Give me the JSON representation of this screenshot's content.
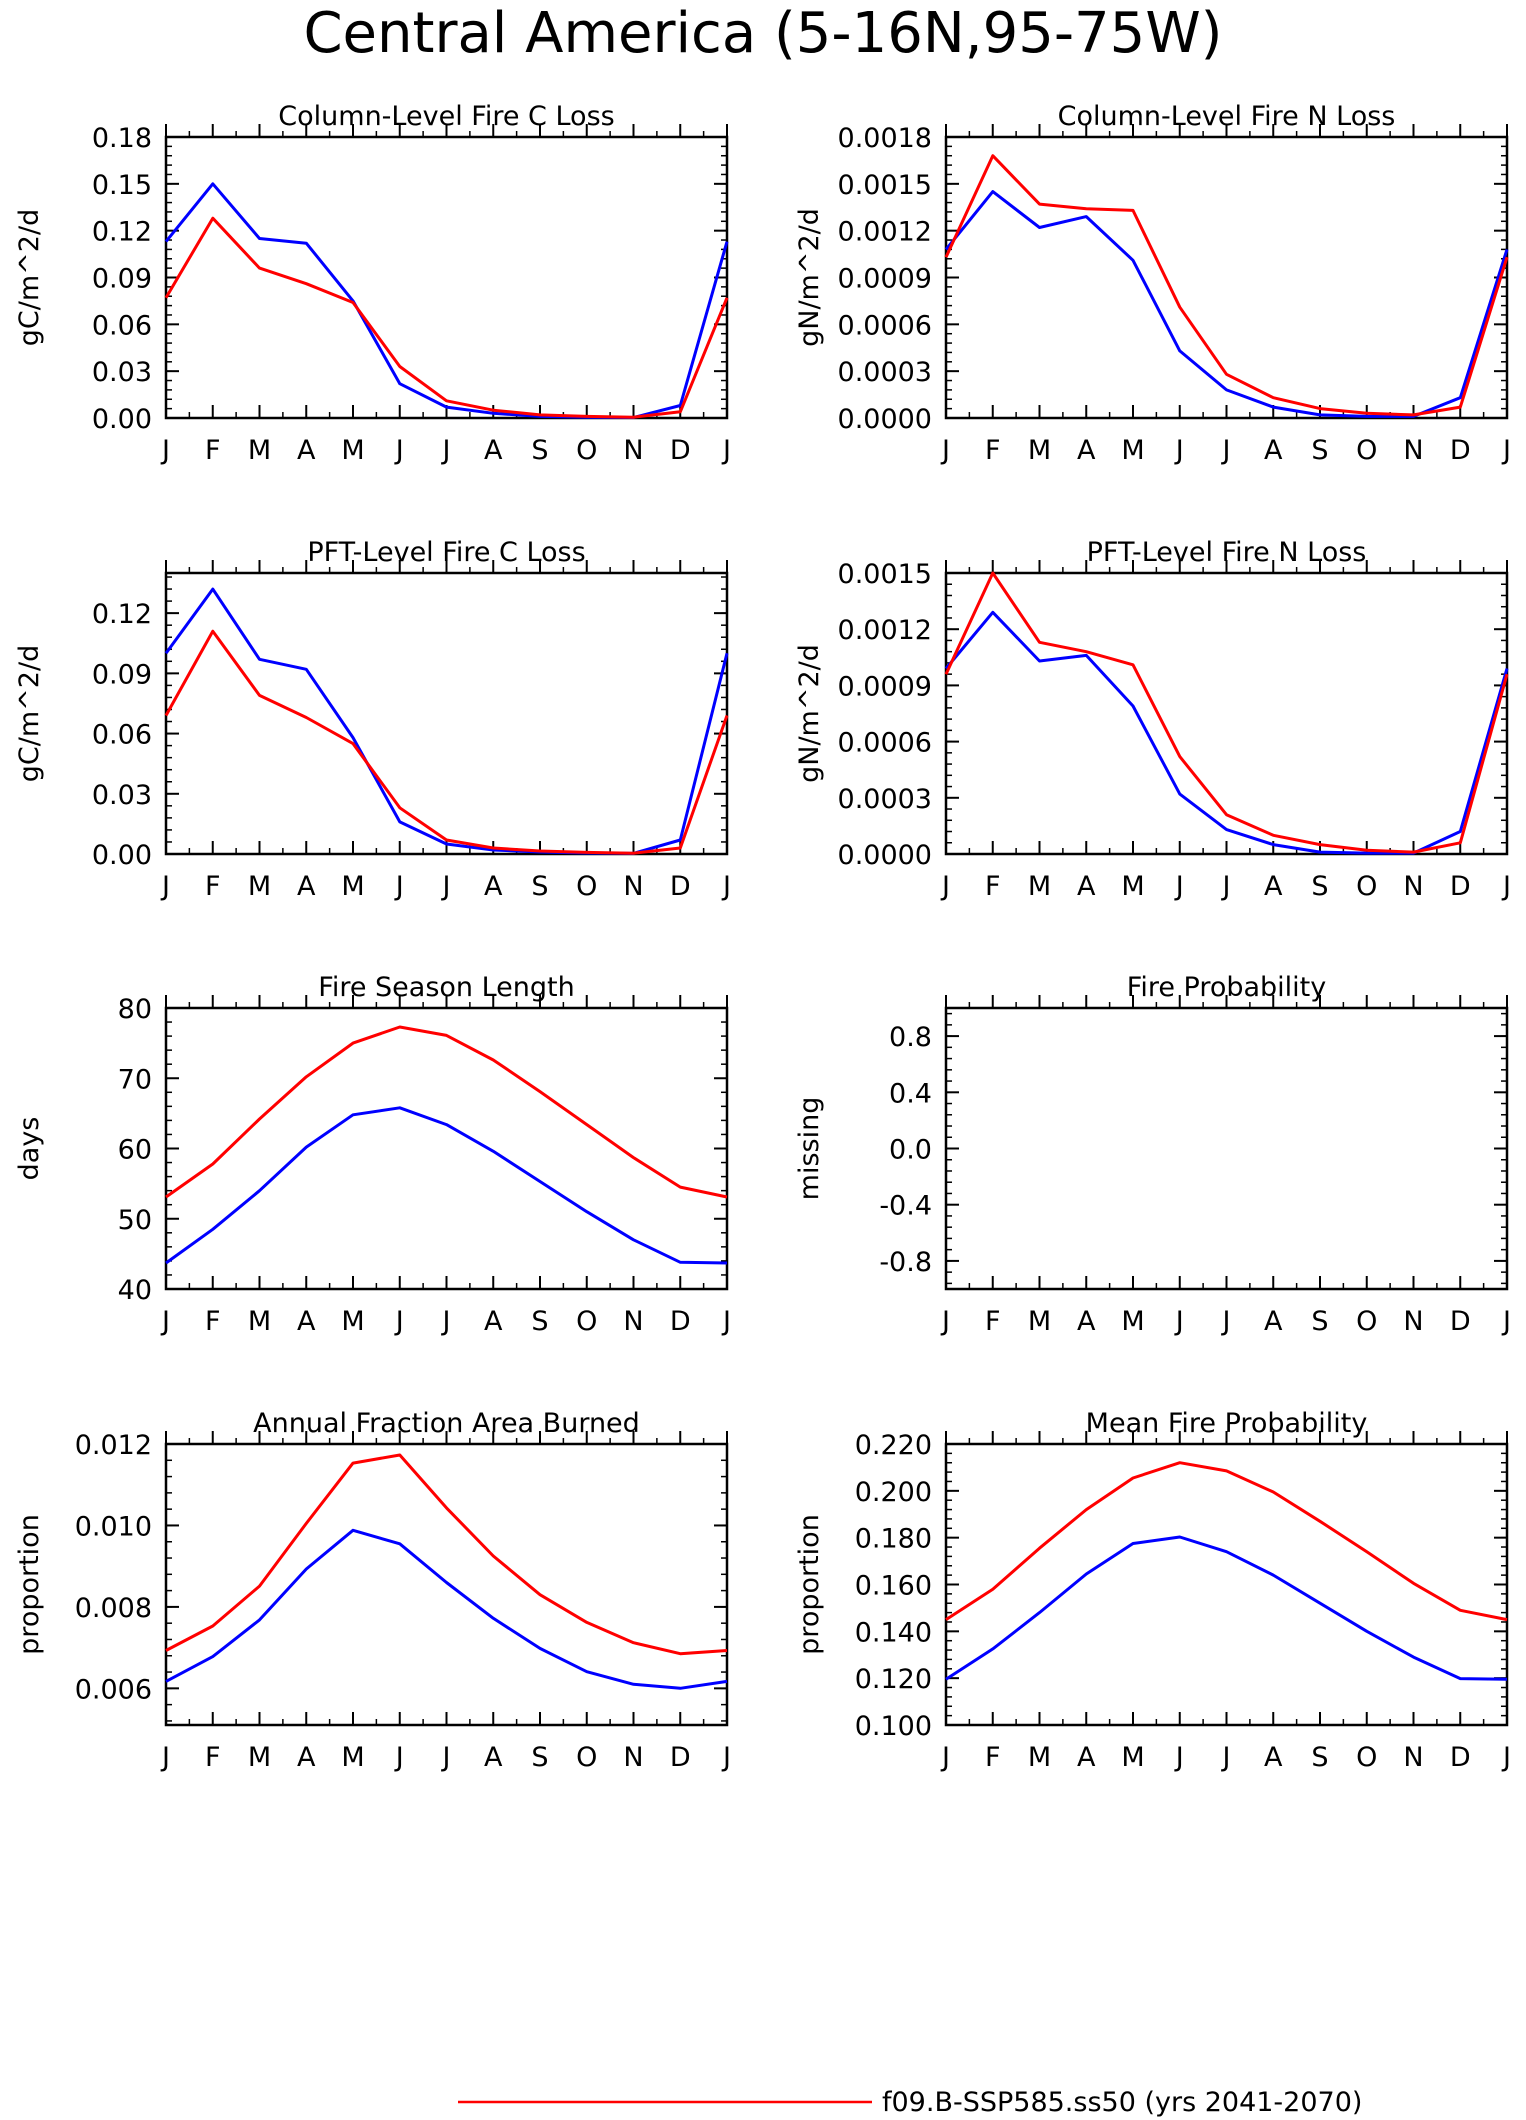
{
  "title": "Central America (5-16N,95-75W)",
  "months": [
    "J",
    "F",
    "M",
    "A",
    "M",
    "J",
    "J",
    "A",
    "S",
    "O",
    "N",
    "D",
    "J"
  ],
  "legend": {
    "label": "f09.B-SSP585.ss50 (yrs 2041-2070)",
    "color": "#ff0000"
  },
  "series_colors": [
    "#0000ff",
    "#ff0000"
  ],
  "chart_data": [
    {
      "type": "line",
      "title": "Column-Level Fire C Loss",
      "ylabel": "gC/m^2/d",
      "ylim": [
        0,
        0.18
      ],
      "yticks": [
        0,
        0.03,
        0.06,
        0.09,
        0.12,
        0.15,
        0.18
      ],
      "ytick_labels": [
        "0.00",
        "0.03",
        "0.06",
        "0.09",
        "0.12",
        "0.15",
        "0.18"
      ],
      "x": [
        "J",
        "F",
        "M",
        "A",
        "M",
        "J",
        "J",
        "A",
        "S",
        "O",
        "N",
        "D",
        "J"
      ],
      "series": [
        {
          "values": [
            0.113,
            0.15,
            0.115,
            0.112,
            0.075,
            0.022,
            0.007,
            0.003,
            0.001,
            0.0005,
            0.0003,
            0.008,
            0.113
          ]
        },
        {
          "values": [
            0.077,
            0.128,
            0.096,
            0.086,
            0.074,
            0.033,
            0.011,
            0.005,
            0.002,
            0.001,
            0.0005,
            0.004,
            0.077
          ]
        }
      ]
    },
    {
      "type": "line",
      "title": "Column-Level Fire N Loss",
      "ylabel": "gN/m^2/d",
      "ylim": [
        0,
        0.0018
      ],
      "yticks": [
        0,
        0.0003,
        0.0006,
        0.0009,
        0.0012,
        0.0015,
        0.0018
      ],
      "ytick_labels": [
        "0.0000",
        "0.0003",
        "0.0006",
        "0.0009",
        "0.0012",
        "0.0015",
        "0.0018"
      ],
      "x": [
        "J",
        "F",
        "M",
        "A",
        "M",
        "J",
        "J",
        "A",
        "S",
        "O",
        "N",
        "D",
        "J"
      ],
      "series": [
        {
          "values": [
            0.00108,
            0.00145,
            0.00122,
            0.00129,
            0.00101,
            0.00043,
            0.00018,
            7e-05,
            2e-05,
            1e-05,
            1e-05,
            0.00013,
            0.00108
          ]
        },
        {
          "values": [
            0.00103,
            0.00168,
            0.00137,
            0.00134,
            0.00133,
            0.00071,
            0.00028,
            0.00013,
            6e-05,
            3e-05,
            2e-05,
            7e-05,
            0.00103
          ]
        }
      ]
    },
    {
      "type": "line",
      "title": "PFT-Level Fire C Loss",
      "ylabel": "gC/m^2/d",
      "ylim": [
        0,
        0.14
      ],
      "yticks": [
        0,
        0.03,
        0.06,
        0.09,
        0.12
      ],
      "ytick_labels": [
        "0.00",
        "0.03",
        "0.06",
        "0.09",
        "0.12"
      ],
      "x": [
        "J",
        "F",
        "M",
        "A",
        "M",
        "J",
        "J",
        "A",
        "S",
        "O",
        "N",
        "D",
        "J"
      ],
      "series": [
        {
          "values": [
            0.1,
            0.132,
            0.097,
            0.092,
            0.058,
            0.016,
            0.005,
            0.002,
            0.001,
            0.0005,
            0.0003,
            0.007,
            0.1
          ]
        },
        {
          "values": [
            0.069,
            0.111,
            0.079,
            0.068,
            0.055,
            0.023,
            0.007,
            0.003,
            0.0015,
            0.0008,
            0.0004,
            0.003,
            0.069
          ]
        }
      ]
    },
    {
      "type": "line",
      "title": "PFT-Level Fire N Loss",
      "ylabel": "gN/m^2/d",
      "ylim": [
        0,
        0.0015
      ],
      "yticks": [
        0,
        0.0003,
        0.0006,
        0.0009,
        0.0012,
        0.0015
      ],
      "ytick_labels": [
        "0.0000",
        "0.0003",
        "0.0006",
        "0.0009",
        "0.0012",
        "0.0015"
      ],
      "x": [
        "J",
        "F",
        "M",
        "A",
        "M",
        "J",
        "J",
        "A",
        "S",
        "O",
        "N",
        "D",
        "J"
      ],
      "series": [
        {
          "values": [
            0.00099,
            0.00129,
            0.00103,
            0.00106,
            0.00079,
            0.00032,
            0.00013,
            5e-05,
            1e-05,
            5e-06,
            5e-06,
            0.00012,
            0.00099
          ]
        },
        {
          "values": [
            0.00096,
            0.0015,
            0.00113,
            0.00108,
            0.00101,
            0.00052,
            0.00021,
            0.0001,
            5e-05,
            2e-05,
            1e-05,
            6e-05,
            0.00096
          ]
        }
      ]
    },
    {
      "type": "line",
      "title": "Fire Season Length",
      "ylabel": "days",
      "ylim": [
        40,
        80
      ],
      "yticks": [
        40,
        50,
        60,
        70,
        80
      ],
      "ytick_labels": [
        "40",
        "50",
        "60",
        "70",
        "80"
      ],
      "x": [
        "J",
        "F",
        "M",
        "A",
        "M",
        "J",
        "J",
        "A",
        "S",
        "O",
        "N",
        "D",
        "J"
      ],
      "series": [
        {
          "values": [
            43.7,
            48.5,
            54.0,
            60.2,
            64.8,
            65.8,
            63.4,
            59.6,
            55.3,
            51.0,
            47.0,
            43.8,
            43.7
          ]
        },
        {
          "values": [
            53.1,
            57.8,
            64.2,
            70.2,
            75.0,
            77.3,
            76.1,
            72.6,
            68.1,
            63.4,
            58.7,
            54.5,
            53.1
          ]
        }
      ]
    },
    {
      "type": "line",
      "title": "Fire Probability",
      "ylabel": "missing",
      "ylim": [
        -1,
        1
      ],
      "yticks": [
        -0.8,
        -0.4,
        0.0,
        0.4,
        0.8
      ],
      "ytick_labels": [
        "-0.8",
        "-0.4",
        "0.0",
        "0.4",
        "0.8"
      ],
      "x": [
        "J",
        "F",
        "M",
        "A",
        "M",
        "J",
        "J",
        "A",
        "S",
        "O",
        "N",
        "D",
        "J"
      ],
      "series": []
    },
    {
      "type": "line",
      "title": "Annual Fraction Area Burned",
      "ylabel": "proportion",
      "ylim": [
        0.0051,
        0.012
      ],
      "yticks": [
        0.006,
        0.008,
        0.01,
        0.012
      ],
      "ytick_labels": [
        "0.006",
        "0.008",
        "0.010",
        "0.012"
      ],
      "x": [
        "J",
        "F",
        "M",
        "A",
        "M",
        "J",
        "J",
        "A",
        "S",
        "O",
        "N",
        "D",
        "J"
      ],
      "series": [
        {
          "values": [
            0.00617,
            0.00678,
            0.00768,
            0.00893,
            0.00988,
            0.00955,
            0.0086,
            0.00772,
            0.00698,
            0.00641,
            0.0061,
            0.006,
            0.00617
          ]
        },
        {
          "values": [
            0.00693,
            0.00753,
            0.00851,
            0.01005,
            0.01153,
            0.01173,
            0.01043,
            0.00925,
            0.0083,
            0.00762,
            0.00712,
            0.00685,
            0.00693
          ]
        }
      ]
    },
    {
      "type": "line",
      "title": "Mean Fire Probability",
      "ylabel": "proportion",
      "ylim": [
        0.1,
        0.22
      ],
      "yticks": [
        0.1,
        0.12,
        0.14,
        0.16,
        0.18,
        0.2,
        0.22
      ],
      "ytick_labels": [
        "0.100",
        "0.120",
        "0.140",
        "0.160",
        "0.180",
        "0.200",
        "0.220"
      ],
      "x": [
        "J",
        "F",
        "M",
        "A",
        "M",
        "J",
        "J",
        "A",
        "S",
        "O",
        "N",
        "D",
        "J"
      ],
      "series": [
        {
          "values": [
            0.1195,
            0.1325,
            0.148,
            0.1645,
            0.1775,
            0.1803,
            0.174,
            0.164,
            0.152,
            0.14,
            0.129,
            0.1198,
            0.1195
          ]
        },
        {
          "values": [
            0.145,
            0.158,
            0.1755,
            0.192,
            0.2055,
            0.212,
            0.2085,
            0.1995,
            0.187,
            0.174,
            0.1605,
            0.149,
            0.145
          ]
        }
      ]
    }
  ]
}
